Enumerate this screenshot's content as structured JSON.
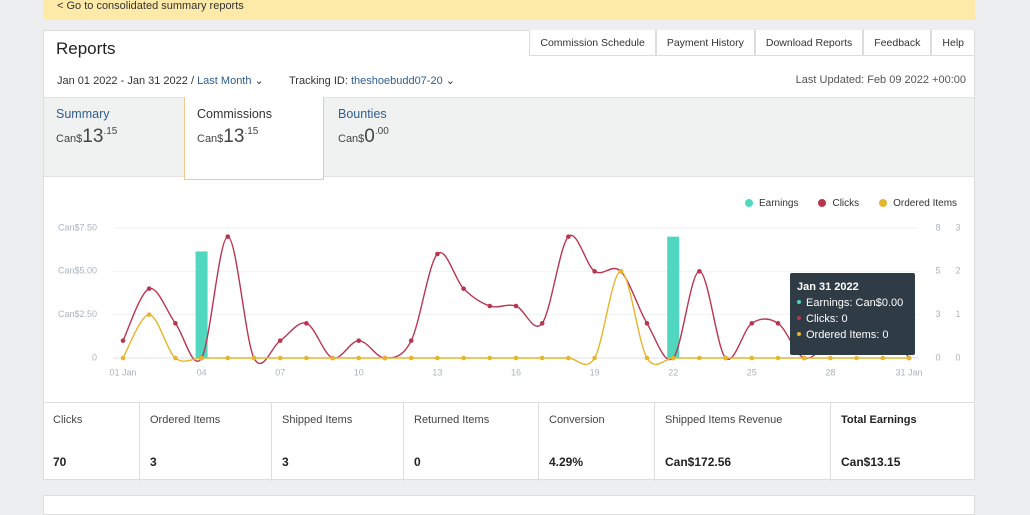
{
  "banner": {
    "link": "< Go to consolidated summary reports"
  },
  "header": {
    "title": "Reports",
    "nav": [
      "Commission Schedule",
      "Payment History",
      "Download Reports",
      "Feedback",
      "Help"
    ]
  },
  "filters": {
    "date_range": "Jan 01 2022 - Jan 31 2022 /",
    "period": "Last Month",
    "tracking_label": "Tracking ID:",
    "tracking_id": "theshoebudd07-20",
    "last_updated": "Last Updated: Feb 09 2022 +00:00"
  },
  "tabs": [
    {
      "label": "Summary",
      "currency": "Can$",
      "whole": "13",
      "fraction": ".15"
    },
    {
      "label": "Commissions",
      "currency": "Can$",
      "whole": "13",
      "fraction": ".15"
    },
    {
      "label": "Bounties",
      "currency": "Can$",
      "whole": "0",
      "fraction": ".00"
    }
  ],
  "chart": {
    "type": "combo",
    "grid": true,
    "categories": [
      "01 Jan",
      null,
      null,
      "04",
      null,
      null,
      "07",
      null,
      null,
      "10",
      null,
      null,
      "13",
      null,
      null,
      "16",
      null,
      null,
      "19",
      null,
      null,
      "22",
      null,
      null,
      "25",
      null,
      null,
      "28",
      null,
      null,
      "31 Jan"
    ],
    "ylim": [
      0,
      7.5
    ],
    "yticks": [
      0,
      {
        "value": 2.5,
        "label": "Can$2.50"
      },
      {
        "value": 5,
        "label": "Can$5.00"
      },
      {
        "value": 7.5,
        "label": "Can$7.50"
      }
    ],
    "y2lim": [
      0,
      7.5
    ],
    "y2ticks": [
      0,
      {
        "value": 2.5,
        "label": "3"
      },
      {
        "value": 5,
        "label": "5"
      },
      {
        "value": 7.5,
        "label": "8"
      }
    ],
    "y3lim": [
      0,
      3
    ],
    "y3ticks": [
      0,
      1,
      2,
      3
    ],
    "series": [
      {
        "name": "Earnings",
        "color": "#4fd8bf",
        "kind": "bar",
        "axis": "y",
        "values": [
          0,
          0,
          0,
          6.15,
          0,
          0,
          0,
          0,
          0,
          0,
          0,
          0,
          0,
          0,
          0,
          0,
          0,
          0,
          0,
          0,
          0,
          7.0,
          0,
          0,
          0,
          0,
          0,
          0,
          0,
          0,
          0
        ]
      },
      {
        "name": "Clicks",
        "color": "#b8364f",
        "kind": "line",
        "axis": "y2",
        "values": [
          1,
          4,
          2,
          0,
          7,
          0,
          1,
          2,
          0,
          1,
          0,
          1,
          6,
          4,
          3,
          3,
          2,
          7,
          5,
          5,
          2,
          0,
          5,
          0,
          2,
          2,
          0,
          1,
          2,
          2,
          0
        ]
      },
      {
        "name": "Ordered Items",
        "color": "#e5b52e",
        "kind": "line",
        "axis": "y3",
        "values": [
          0,
          1,
          0,
          0,
          0,
          0,
          0,
          0,
          0,
          0,
          0,
          0,
          0,
          0,
          0,
          0,
          0,
          0,
          0,
          2,
          0,
          0,
          0,
          0,
          0,
          0,
          0,
          0,
          0,
          0,
          0
        ]
      }
    ]
  },
  "tooltip": {
    "date": "Jan 31 2022",
    "lines": [
      "Earnings: Can$0.00",
      "Clicks: 0",
      "Ordered Items: 0"
    ]
  },
  "stats": [
    {
      "label": "Clicks",
      "value": "70"
    },
    {
      "label": "Ordered Items",
      "value": "3"
    },
    {
      "label": "Shipped Items",
      "value": "3"
    },
    {
      "label": "Returned Items",
      "value": "0"
    },
    {
      "label": "Conversion",
      "value": "4.29%"
    },
    {
      "label": "Shipped Items Revenue",
      "value": "Can$172.56"
    },
    {
      "label": "Total Earnings",
      "value": "Can$13.15"
    }
  ]
}
